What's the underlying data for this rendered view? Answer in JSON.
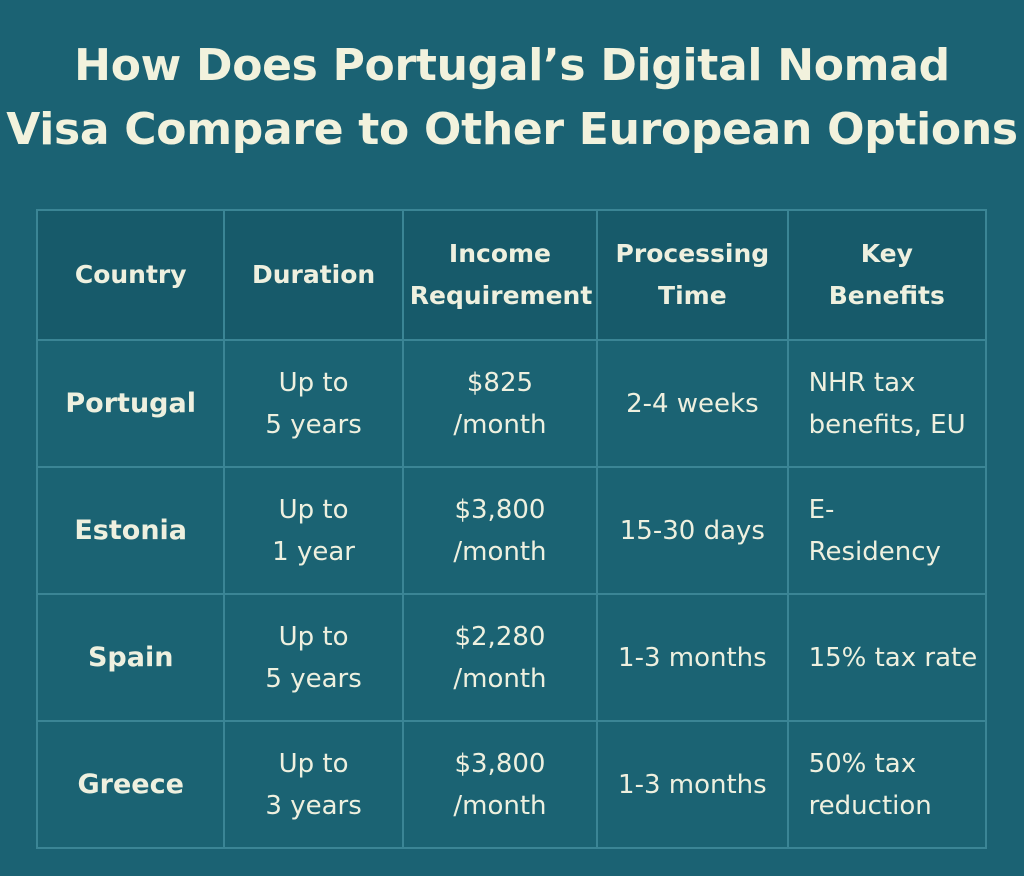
{
  "title": {
    "line1": "How Does Portugal’s Digital Nomad",
    "line2": "Visa Compare to Other European Options"
  },
  "table": {
    "headers": {
      "country": "Country",
      "duration": "Duration",
      "income": "Income\nRequirement",
      "processing": "Processing\nTime",
      "benefits": "Key\nBenefits"
    },
    "rows": [
      {
        "country": "Portugal",
        "duration": "Up to\n5 years",
        "income": "$825\n/month",
        "processing": "2-4 weeks",
        "benefits": "NHR tax\nbenefits, EU"
      },
      {
        "country": "Estonia",
        "duration": "Up to\n1 year",
        "income": "$3,800\n/month",
        "processing": "15-30 days",
        "benefits": "E-\nResidency"
      },
      {
        "country": "Spain",
        "duration": "Up to\n5 years",
        "income": "$2,280\n/month",
        "processing": "1-3 months",
        "benefits": "15% tax rate"
      },
      {
        "country": "Greece",
        "duration": "Up to\n3 years",
        "income": "$3,800\n/month",
        "processing": "1-3 months",
        "benefits": "50% tax\nreduction"
      }
    ]
  },
  "colors": {
    "background": "#1b6273",
    "header_background": "#175a6a",
    "grid_line": "#3b8595",
    "text": "#eef1e2"
  }
}
